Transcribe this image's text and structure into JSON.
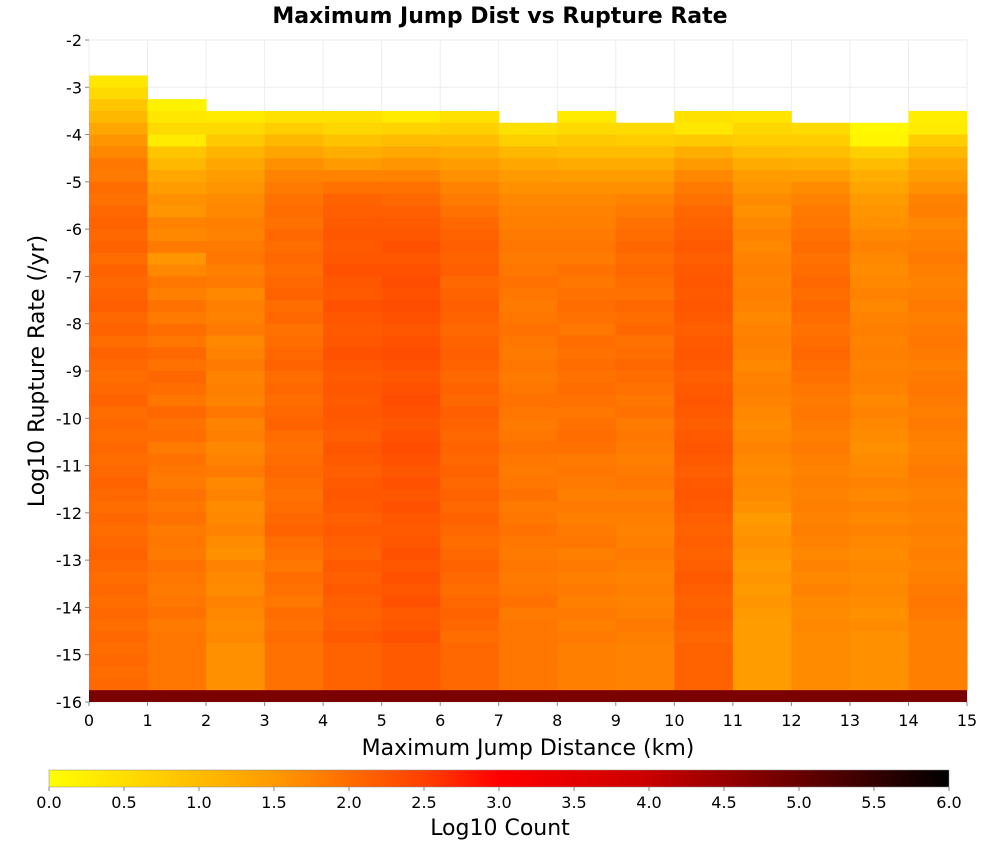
{
  "chart_data": {
    "type": "heatmap",
    "title": "Maximum Jump Dist vs Rupture Rate",
    "xlabel": "Maximum Jump Distance (km)",
    "ylabel": "Log10 Rupture Rate (/yr)",
    "xlim": [
      0,
      15
    ],
    "ylim": [
      -16,
      -2
    ],
    "x_ticks": [
      "0",
      "1",
      "2",
      "3",
      "4",
      "5",
      "6",
      "7",
      "8",
      "9",
      "10",
      "11",
      "12",
      "13",
      "14",
      "15"
    ],
    "y_ticks": [
      "-2",
      "-3",
      "-4",
      "-5",
      "-6",
      "-7",
      "-8",
      "-9",
      "-10",
      "-11",
      "-12",
      "-13",
      "-14",
      "-15",
      "-16"
    ],
    "x_bin_size": 1,
    "y_bin_size": 0.25,
    "y_bins_top_down_from": -2,
    "top_bin_per_column": [
      -2.75,
      -3.25,
      -3.5,
      -3.5,
      -3.5,
      -3.5,
      -3.5,
      -3.75,
      -3.5,
      -3.75,
      -3.5,
      -3.5,
      -3.75,
      -3.75,
      -3.5
    ],
    "bottom_row_value": 4.8,
    "counts_log10_by_column_top_down": [
      [
        0.35,
        0.55,
        0.85,
        1.05,
        1.3,
        1.55,
        1.7,
        1.9,
        1.85,
        2.0,
        1.95,
        2.05,
        2.1,
        2.05,
        2.1,
        2.0,
        2.1,
        2.05,
        2.1,
        2.15,
        2.05,
        2.1,
        2.0,
        2.1,
        2.05,
        2.0,
        2.05,
        2.1,
        2.0,
        2.05,
        2.0,
        2.05,
        2.0,
        2.05,
        2.1,
        2.05,
        2.0,
        2.05,
        2.0,
        2.05,
        2.1,
        2.05,
        2.0,
        2.05,
        2.0,
        2.05,
        2.0,
        2.05,
        2.0,
        2.05,
        2.0,
        2.05,
        2.0
      ],
      [
        0.2,
        0.35,
        0.55,
        0.3,
        0.85,
        1.05,
        1.3,
        1.45,
        1.6,
        1.55,
        1.75,
        1.7,
        1.85,
        1.55,
        1.7,
        1.9,
        1.8,
        1.95,
        1.85,
        2.0,
        1.9,
        2.05,
        1.95,
        2.05,
        2.0,
        1.9,
        2.05,
        1.95,
        2.0,
        1.85,
        1.95,
        1.9,
        1.85,
        1.95,
        1.9,
        1.95,
        1.85,
        1.9,
        1.85,
        1.95,
        1.9,
        1.85,
        1.9,
        1.95,
        1.85,
        1.9
      ],
      [
        0.3,
        0.55,
        0.8,
        1.1,
        1.3,
        1.45,
        1.55,
        1.65,
        1.7,
        1.8,
        1.75,
        1.85,
        1.9,
        1.8,
        1.85,
        1.7,
        1.8,
        1.75,
        1.85,
        1.7,
        1.75,
        1.85,
        1.75,
        1.8,
        1.75,
        1.9,
        1.75,
        1.8,
        1.7,
        1.75,
        1.85,
        1.7,
        1.75,
        1.65,
        1.7,
        1.75,
        1.65,
        1.6,
        1.75,
        1.7,
        1.65,
        1.75,
        1.7,
        1.65,
        1.7,
        1.6
      ],
      [
        0.45,
        0.75,
        1.05,
        1.35,
        1.6,
        1.75,
        1.85,
        1.95,
        2.0,
        1.95,
        2.05,
        2.0,
        2.05,
        2.0,
        2.05,
        2.1,
        2.0,
        2.05,
        1.95,
        2.0,
        2.05,
        2.1,
        2.0,
        2.05,
        2.0,
        2.05,
        2.1,
        2.0,
        1.95,
        2.0,
        2.05,
        2.0,
        1.95,
        2.0,
        2.05,
        2.1,
        2.0,
        1.95,
        1.9,
        2.0,
        1.95,
        1.9,
        2.0,
        1.95,
        2.0,
        1.95
      ],
      [
        0.45,
        0.6,
        0.9,
        1.2,
        1.5,
        1.75,
        1.95,
        2.1,
        2.15,
        2.2,
        2.25,
        2.2,
        2.25,
        2.3,
        2.25,
        2.2,
        2.3,
        2.25,
        2.2,
        2.25,
        2.3,
        2.25,
        2.2,
        2.25,
        2.2,
        2.25,
        2.2,
        2.15,
        2.25,
        2.2,
        2.15,
        2.2,
        2.25,
        2.2,
        2.15,
        2.2,
        2.15,
        2.1,
        2.2,
        2.15,
        2.2,
        2.15,
        2.1,
        2.15,
        2.2,
        2.1
      ],
      [
        0.3,
        0.65,
        1.0,
        1.3,
        1.55,
        1.75,
        1.95,
        2.05,
        2.15,
        2.2,
        2.25,
        2.3,
        2.25,
        2.3,
        2.35,
        2.3,
        2.35,
        2.3,
        2.25,
        2.3,
        2.35,
        2.3,
        2.25,
        2.3,
        2.35,
        2.3,
        2.25,
        2.3,
        2.35,
        2.3,
        2.25,
        2.3,
        2.25,
        2.3,
        2.25,
        2.2,
        2.25,
        2.3,
        2.25,
        2.3,
        2.25,
        2.3,
        2.2,
        2.25,
        2.3,
        2.2
      ],
      [
        0.45,
        0.7,
        1.0,
        1.25,
        1.45,
        1.6,
        1.75,
        1.85,
        1.95,
        2.05,
        2.1,
        2.15,
        2.1,
        2.15,
        2.05,
        2.1,
        2.15,
        2.1,
        2.05,
        2.1,
        2.15,
        2.1,
        2.05,
        2.1,
        2.05,
        2.15,
        2.1,
        2.05,
        2.1,
        2.05,
        2.1,
        2.05,
        2.1,
        2.05,
        2.1,
        2.05,
        2.0,
        2.05,
        2.1,
        2.05,
        2.0,
        2.05,
        2.1,
        2.05,
        2.0,
        2.05
      ],
      [
        0.45,
        0.7,
        1.05,
        1.3,
        1.5,
        1.6,
        1.7,
        1.75,
        1.8,
        1.85,
        1.9,
        1.85,
        1.9,
        1.95,
        1.9,
        1.85,
        1.9,
        1.95,
        1.9,
        1.85,
        1.9,
        1.85,
        1.9,
        1.95,
        1.9,
        1.85,
        1.9,
        1.95,
        1.9,
        1.85,
        1.9,
        1.95,
        1.85,
        1.9,
        1.95,
        1.9,
        1.85,
        1.9,
        1.85,
        1.9,
        1.95,
        1.85,
        1.9
      ],
      [
        0.3,
        0.55,
        0.8,
        1.0,
        1.25,
        1.45,
        1.6,
        1.7,
        1.75,
        1.8,
        1.85,
        1.9,
        1.85,
        1.95,
        1.9,
        1.95,
        2.0,
        1.95,
        1.9,
        2.0,
        1.95,
        2.0,
        1.95,
        2.0,
        1.95,
        1.9,
        1.95,
        2.0,
        1.95,
        1.85,
        1.9,
        1.85,
        1.8,
        1.85,
        1.8,
        1.85,
        1.9,
        1.8,
        1.85,
        1.8,
        1.85,
        1.8,
        1.85,
        1.8,
        1.85,
        1.8
      ],
      [
        0.55,
        0.75,
        1.0,
        1.25,
        1.45,
        1.6,
        1.75,
        1.85,
        1.95,
        2.0,
        2.05,
        2.0,
        2.05,
        2.0,
        1.95,
        2.05,
        2.0,
        2.05,
        1.95,
        2.0,
        2.05,
        2.0,
        1.95,
        1.9,
        1.95,
        1.85,
        1.9,
        1.85,
        1.8,
        1.85,
        1.9,
        1.8,
        1.85,
        1.8,
        1.75,
        1.8,
        1.85,
        1.8,
        1.75,
        1.8,
        1.75,
        1.8,
        1.85,
        1.8,
        1.75
      ],
      [
        0.45,
        0.35,
        0.8,
        1.2,
        1.5,
        1.7,
        1.85,
        1.95,
        2.05,
        2.1,
        2.15,
        2.2,
        2.15,
        2.2,
        2.25,
        2.2,
        2.25,
        2.2,
        2.15,
        2.2,
        2.25,
        2.2,
        2.15,
        2.2,
        2.25,
        2.2,
        2.15,
        2.2,
        2.25,
        2.2,
        2.15,
        2.2,
        2.25,
        2.2,
        2.15,
        2.1,
        2.15,
        2.1,
        2.15,
        2.2,
        2.15,
        2.1,
        2.15,
        2.1,
        2.05,
        2.1
      ],
      [
        0.4,
        0.6,
        0.75,
        1.0,
        1.25,
        1.45,
        1.55,
        1.65,
        1.6,
        1.7,
        1.75,
        1.7,
        1.75,
        1.8,
        1.75,
        1.8,
        1.75,
        1.7,
        1.75,
        1.8,
        1.75,
        1.7,
        1.75,
        1.8,
        1.75,
        1.7,
        1.65,
        1.7,
        1.75,
        1.7,
        1.65,
        1.7,
        1.65,
        1.6,
        1.5,
        1.55,
        1.6,
        1.55,
        1.5,
        1.55,
        1.5,
        1.55,
        1.5,
        1.45
      ],
      [
        0.55,
        0.75,
        0.95,
        1.2,
        1.45,
        1.65,
        1.75,
        1.85,
        1.9,
        1.95,
        2.0,
        1.95,
        2.0,
        2.05,
        2.0,
        2.05,
        2.0,
        1.95,
        2.0,
        2.05,
        2.0,
        1.95,
        1.9,
        1.85,
        1.9,
        1.85,
        1.8,
        1.85,
        1.8,
        1.75,
        1.8,
        1.75,
        1.8,
        1.75,
        1.8,
        1.75,
        1.7,
        1.75,
        1.7,
        1.75,
        1.7,
        1.65,
        1.7,
        1.65
      ],
      [
        0.1,
        0.15,
        0.7,
        1.0,
        1.2,
        1.35,
        1.5,
        1.55,
        1.6,
        1.7,
        1.75,
        1.7,
        1.65,
        1.7,
        1.75,
        1.7,
        1.75,
        1.8,
        1.75,
        1.8,
        1.75,
        1.8,
        1.75,
        1.7,
        1.75,
        1.7,
        1.65,
        1.6,
        1.65,
        1.7,
        1.75,
        1.7,
        1.75,
        1.7,
        1.75,
        1.7,
        1.65,
        1.7,
        1.65,
        1.7,
        1.65,
        1.6,
        1.65,
        1.6
      ],
      [
        0.25,
        0.3,
        0.75,
        1.05,
        1.3,
        1.45,
        1.6,
        1.75,
        1.8,
        1.7,
        1.75,
        1.8,
        1.85,
        1.8,
        1.75,
        1.8,
        1.85,
        1.8,
        1.85,
        1.9,
        1.85,
        1.8,
        1.85,
        1.9,
        1.85,
        1.8,
        1.85,
        1.8,
        1.75,
        1.8,
        1.85,
        1.8,
        1.75,
        1.8,
        1.75,
        1.8,
        1.75,
        1.8,
        1.75,
        1.8,
        1.85,
        1.9,
        1.85,
        1.8
      ]
    ],
    "colorbar": {
      "label": "Log10 Count",
      "range": [
        0,
        6
      ],
      "ticks": [
        "0.0",
        "0.5",
        "1.0",
        "1.5",
        "2.0",
        "2.5",
        "3.0",
        "3.5",
        "4.0",
        "4.5",
        "5.0",
        "5.5",
        "6.0"
      ],
      "colormap": "hot_r",
      "stops": [
        "#ffff00",
        "#ff7f00",
        "#ff0000",
        "#cc0000",
        "#000000"
      ]
    },
    "grid": true
  }
}
